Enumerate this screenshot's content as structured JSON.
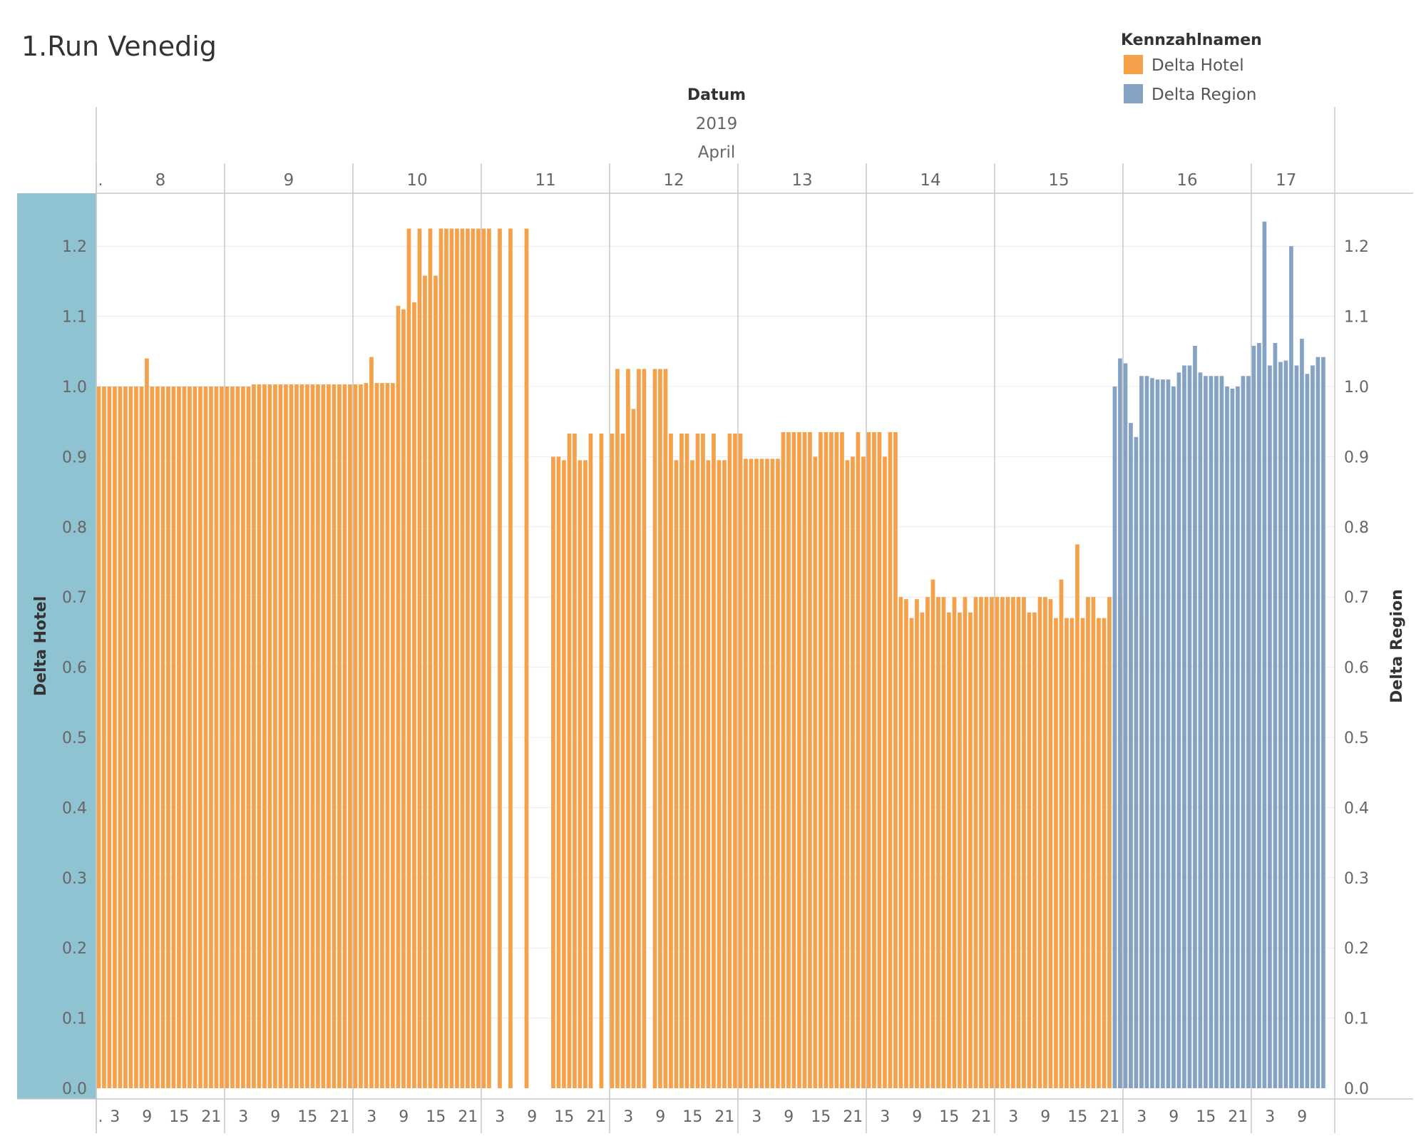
{
  "chart_data": {
    "type": "bar",
    "title": "1.Run Venedig",
    "header": {
      "label": "Datum",
      "year": "2019",
      "month": "April"
    },
    "days": [
      {
        "label": "8",
        "start": 0,
        "end": 24
      },
      {
        "label": "9",
        "start": 24,
        "end": 48
      },
      {
        "label": "10",
        "start": 48,
        "end": 72
      },
      {
        "label": "11",
        "start": 72,
        "end": 96
      },
      {
        "label": "12",
        "start": 96,
        "end": 120
      },
      {
        "label": "13",
        "start": 120,
        "end": 144
      },
      {
        "label": "14",
        "start": 144,
        "end": 168
      },
      {
        "label": "15",
        "start": 168,
        "end": 192
      },
      {
        "label": "16",
        "start": 192,
        "end": 216
      },
      {
        "label": "17",
        "start": 216,
        "end": 229
      }
    ],
    "first_day_stub_label": ".",
    "hour_ticks": [
      "3",
      "9",
      "15",
      "21"
    ],
    "yaxis_left": {
      "label": "Delta Hotel",
      "ticks": [
        "0.0",
        "0.1",
        "0.2",
        "0.3",
        "0.4",
        "0.5",
        "0.6",
        "0.7",
        "0.8",
        "0.9",
        "1.0",
        "1.1",
        "1.2"
      ],
      "ylim": [
        0,
        1.29
      ]
    },
    "yaxis_right": {
      "label": "Delta Region",
      "ticks": [
        "0.0",
        "0.1",
        "0.2",
        "0.3",
        "0.4",
        "0.5",
        "0.6",
        "0.7",
        "0.8",
        "0.9",
        "1.0",
        "1.1",
        "1.2"
      ],
      "ylim": [
        0,
        1.29
      ]
    },
    "legend": {
      "title": "Kennzahlnamen",
      "position": "top-right",
      "items": [
        {
          "name": "Delta Hotel",
          "color": "#F5A14A"
        },
        {
          "name": "Delta Region",
          "color": "#84A3C4"
        }
      ]
    },
    "axis_panel_color": "#8FC3D2",
    "grid": true,
    "series": [
      {
        "name": "Delta Hotel",
        "color": "#F5A14A",
        "start_hour": 0,
        "values": [
          1.0,
          1.0,
          1.0,
          1.0,
          1.0,
          1.0,
          1.0,
          1.0,
          1.0,
          1.04,
          1.0,
          1.0,
          1.0,
          1.0,
          1.0,
          1.0,
          1.0,
          1.0,
          1.0,
          1.0,
          1.0,
          1.0,
          1.0,
          1.0,
          1.0,
          1.0,
          1.0,
          1.0,
          1.0,
          1.003,
          1.003,
          1.003,
          1.003,
          1.003,
          1.003,
          1.003,
          1.003,
          1.003,
          1.003,
          1.003,
          1.003,
          1.003,
          1.003,
          1.003,
          1.003,
          1.003,
          1.003,
          1.003,
          1.003,
          1.003,
          1.005,
          1.042,
          1.005,
          1.005,
          1.005,
          1.005,
          1.115,
          1.11,
          1.225,
          1.12,
          1.225,
          1.158,
          1.225,
          1.158,
          1.225,
          1.225,
          1.225,
          1.225,
          1.225,
          1.225,
          1.225,
          1.225,
          1.225,
          1.225,
          0,
          1.225,
          0,
          1.225,
          0,
          0,
          1.225,
          0,
          0,
          0,
          0,
          0.9,
          0.9,
          0.895,
          0.933,
          0.933,
          0.895,
          0.895,
          0.933,
          0,
          0.933,
          0,
          0.933,
          1.025,
          0.933,
          1.025,
          0.968,
          1.025,
          1.025,
          0,
          1.025,
          1.025,
          1.025,
          0.933,
          0.895,
          0.933,
          0.933,
          0.895,
          0.933,
          0.933,
          0.895,
          0.933,
          0.895,
          0.895,
          0.933,
          0.933,
          0.933,
          0.897,
          0.897,
          0.897,
          0.897,
          0.897,
          0.897,
          0.897,
          0.935,
          0.935,
          0.935,
          0.935,
          0.935,
          0.935,
          0.9,
          0.935,
          0.935,
          0.935,
          0.935,
          0.935,
          0.895,
          0.9,
          0.935,
          0.9,
          0.935,
          0.935,
          0.935,
          0.9,
          0.935,
          0.935,
          0.7,
          0.697,
          0.67,
          0.697,
          0.678,
          0.7,
          0.725,
          0.7,
          0.7,
          0.678,
          0.7,
          0.678,
          0.7,
          0.678,
          0.7,
          0.7,
          0.7,
          0.7,
          0.7,
          0.7,
          0.7,
          0.7,
          0.7,
          0.7,
          0.678,
          0.678,
          0.7,
          0.7,
          0.697,
          0.67,
          0.725,
          0.67,
          0.67,
          0.775,
          0.67,
          0.7,
          0.7,
          0.67,
          0.67,
          0.7,
          0.7,
          0.7,
          0.67,
          0.678,
          0.7,
          0.672
        ]
      },
      {
        "name": "Delta Region",
        "color": "#84A3C4",
        "start_hour": 190,
        "values": [
          1.0,
          1.04,
          1.033,
          0.948,
          0.928,
          1.015,
          1.015,
          1.012,
          1.01,
          1.01,
          1.01,
          1.0,
          1.02,
          1.03,
          1.03,
          1.058,
          1.02,
          1.015,
          1.015,
          1.015,
          1.015,
          1.0,
          0.997,
          1.0,
          1.015,
          1.015,
          1.058,
          1.062,
          1.235,
          1.03,
          1.062,
          1.035,
          1.037,
          1.2,
          1.03,
          1.068,
          1.018,
          1.03,
          1.042,
          1.042
        ]
      }
    ]
  }
}
